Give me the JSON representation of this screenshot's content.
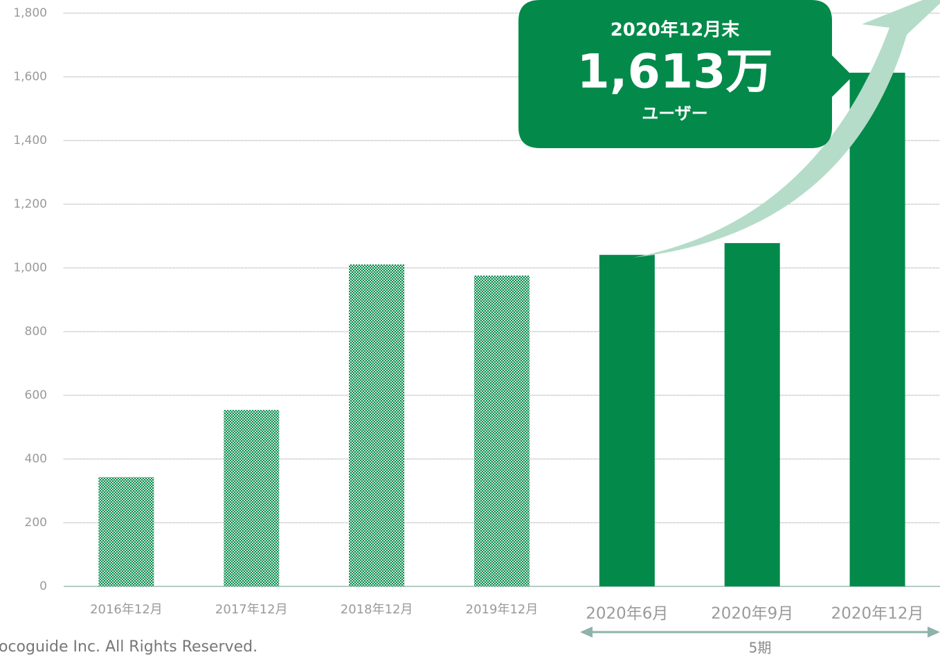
{
  "chart_data": {
    "type": "bar",
    "categories": [
      "2016年12月",
      "2017年12月",
      "2018年12月",
      "2019年12月",
      "2020年6月",
      "2020年9月",
      "2020年12月"
    ],
    "values": [
      343,
      554,
      1011,
      976,
      1041,
      1078,
      1613
    ],
    "bar_styles": [
      "pattern",
      "pattern",
      "pattern",
      "pattern",
      "solid",
      "solid",
      "solid"
    ],
    "color": "#038a4a",
    "ylim": [
      0,
      1800
    ],
    "yticks": [
      0,
      200,
      400,
      600,
      800,
      {
        "value": 1000,
        "label": "1,000"
      },
      {
        "value": 1200,
        "label": "1,200"
      },
      {
        "value": 1400,
        "label": "1,400"
      },
      {
        "value": 1600,
        "label": "1,600"
      },
      {
        "value": 1800,
        "label": "1,800"
      }
    ],
    "grid": true,
    "callout": {
      "date": "2020年12月末",
      "value": "1,613万",
      "unit": "ユーザー"
    },
    "period_label": "5期",
    "footer": "ocoguide Inc. All Rights Reserved."
  }
}
